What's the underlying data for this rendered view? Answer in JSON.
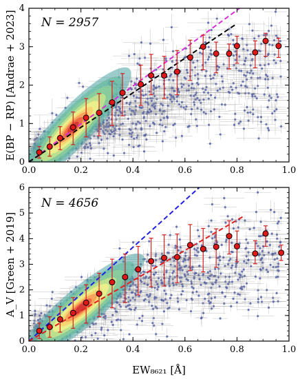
{
  "chart_data": [
    {
      "type": "scatter",
      "title": "",
      "xlabel": "",
      "ylabel": "E(BP − RP) [Andrae + 2023]",
      "annotation": "N = 2957",
      "xlim": [
        0.0,
        1.0
      ],
      "ylim": [
        0,
        4
      ],
      "xticks": [
        "0.0",
        "0.2",
        "0.4",
        "0.6",
        "0.8",
        "1.0"
      ],
      "yticks": [
        "0",
        "1",
        "2",
        "3",
        "4"
      ],
      "binned_medians": {
        "x": [
          0.04,
          0.08,
          0.12,
          0.17,
          0.22,
          0.27,
          0.32,
          0.36,
          0.43,
          0.47,
          0.52,
          0.57,
          0.62,
          0.67,
          0.72,
          0.77,
          0.8,
          0.87,
          0.91,
          0.96
        ],
        "y": [
          0.25,
          0.4,
          0.62,
          0.9,
          1.15,
          1.28,
          1.55,
          1.8,
          2.02,
          2.25,
          2.25,
          2.35,
          2.72,
          3.0,
          2.82,
          2.82,
          3.02,
          2.85,
          3.15,
          3.02
        ],
        "err_low": [
          0.15,
          0.25,
          0.3,
          0.45,
          0.5,
          0.6,
          0.6,
          0.6,
          0.55,
          0.5,
          0.6,
          0.6,
          0.6,
          0.6,
          0.5,
          0.4,
          0.45,
          0.4,
          0.4,
          0.3
        ],
        "err_high": [
          0.15,
          0.25,
          0.3,
          0.4,
          0.5,
          0.5,
          0.55,
          0.5,
          0.5,
          0.55,
          0.5,
          0.55,
          0.45,
          0.3,
          0.3,
          0.25,
          0.25,
          0.3,
          0.2,
          0.2
        ]
      },
      "fit_lines": [
        {
          "color": "#d62fd6",
          "x": [
            0.0,
            0.81
          ],
          "y": [
            0.0,
            4.0
          ]
        },
        {
          "color": "#000000",
          "x": [
            0.0,
            0.8
          ],
          "y": [
            0.0,
            3.6
          ]
        }
      ],
      "density_center": {
        "x": 0.17,
        "y": 0.9
      },
      "scatter_color": "#5560a8"
    },
    {
      "type": "scatter",
      "title": "",
      "xlabel": "EW₈₆₂₁ [Å]",
      "ylabel": "A_V [Green + 2019]",
      "annotation": "N = 4656",
      "xlim": [
        0.0,
        1.0
      ],
      "ylim": [
        0,
        6
      ],
      "xticks": [
        "0.0",
        "0.2",
        "0.4",
        "0.6",
        "0.8",
        "1.0"
      ],
      "yticks": [
        "0",
        "1",
        "2",
        "3",
        "4",
        "5",
        "6"
      ],
      "binned_medians": {
        "x": [
          0.04,
          0.08,
          0.12,
          0.17,
          0.22,
          0.27,
          0.32,
          0.37,
          0.42,
          0.47,
          0.52,
          0.57,
          0.62,
          0.67,
          0.72,
          0.77,
          0.8,
          0.87,
          0.91,
          0.97
        ],
        "y": [
          0.4,
          0.55,
          0.85,
          1.1,
          1.5,
          1.85,
          2.3,
          2.5,
          2.8,
          3.12,
          3.25,
          3.28,
          3.75,
          3.6,
          3.68,
          4.1,
          3.7,
          3.42,
          4.2,
          3.45
        ],
        "err_low": [
          0.3,
          0.4,
          0.5,
          0.6,
          0.8,
          0.9,
          1.0,
          1.0,
          1.0,
          1.0,
          1.1,
          1.0,
          1.0,
          0.9,
          0.8,
          0.7,
          0.6,
          0.4,
          0.5,
          0.3
        ],
        "err_high": [
          0.3,
          0.4,
          0.5,
          0.6,
          0.7,
          0.8,
          0.9,
          0.9,
          0.9,
          0.9,
          0.9,
          0.9,
          0.8,
          0.8,
          0.7,
          0.6,
          0.6,
          0.5,
          0.3,
          0.3
        ]
      },
      "fit_lines": [
        {
          "color": "#1f1fe0",
          "x": [
            0.0,
            0.655
          ],
          "y": [
            0.0,
            6.0
          ]
        },
        {
          "color": "#e02020",
          "x": [
            0.0,
            0.83
          ],
          "y": [
            0.0,
            4.9
          ]
        }
      ],
      "density_center": {
        "x": 0.2,
        "y": 1.3
      },
      "scatter_color": "#5560a8"
    }
  ]
}
